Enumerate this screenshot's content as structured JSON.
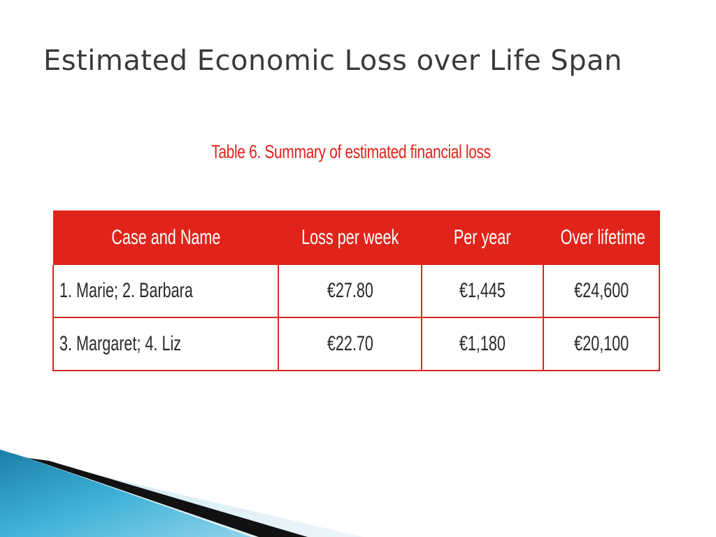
{
  "slide": {
    "title": "Estimated Economic Loss over Life Span"
  },
  "table": {
    "caption": "Table 6. Summary of estimated financial loss",
    "headers": [
      "Case and Name",
      "Loss per week",
      "Per year",
      "Over lifetime"
    ],
    "rows": [
      [
        "1. Marie; 2. Barbara",
        "€27.80",
        "€1,445",
        "€24,600"
      ],
      [
        "3. Margaret; 4. Liz",
        "€22.70",
        "€1,180",
        "€20,100"
      ]
    ]
  },
  "colors": {
    "accent": "#e0241b",
    "title_text": "#3a3a3a",
    "decor_blue": "#2a9cc4",
    "decor_dark": "#111111"
  },
  "icons": [
    "corner-swoosh-decoration"
  ]
}
